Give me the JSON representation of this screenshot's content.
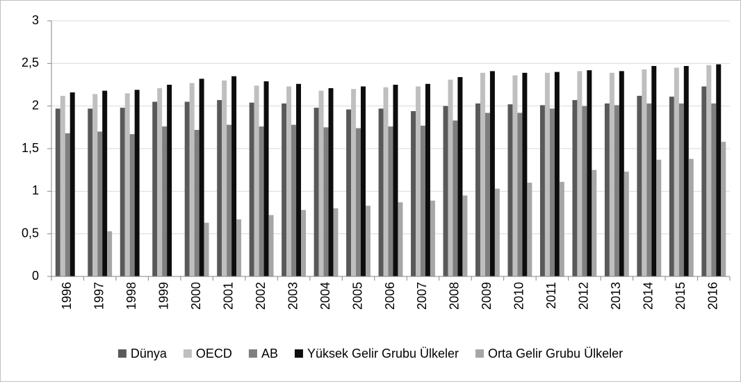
{
  "chart_data": {
    "type": "bar",
    "categories": [
      "1996",
      "1997",
      "1998",
      "1999",
      "2000",
      "2001",
      "2002",
      "2003",
      "2004",
      "2005",
      "2006",
      "2007",
      "2008",
      "2009",
      "2010",
      "2011",
      "2012",
      "2013",
      "2014",
      "2015",
      "2016"
    ],
    "series": [
      {
        "name": "Dünya",
        "color": "#595959",
        "values": [
          1.97,
          1.97,
          1.98,
          2.05,
          2.05,
          2.07,
          2.04,
          2.03,
          1.98,
          1.96,
          1.97,
          1.94,
          2.0,
          2.03,
          2.02,
          2.01,
          2.07,
          2.03,
          2.12,
          2.11,
          2.23
        ]
      },
      {
        "name": "OECD",
        "color": "#bfbfbf",
        "values": [
          2.12,
          2.14,
          2.15,
          2.21,
          2.27,
          2.3,
          2.24,
          2.23,
          2.18,
          2.2,
          2.22,
          2.23,
          2.31,
          2.39,
          2.36,
          2.39,
          2.41,
          2.39,
          2.43,
          2.45,
          2.48
        ]
      },
      {
        "name": "AB",
        "color": "#7f7f7f",
        "values": [
          1.68,
          1.7,
          1.67,
          1.76,
          1.72,
          1.78,
          1.76,
          1.78,
          1.75,
          1.74,
          1.76,
          1.77,
          1.83,
          1.92,
          1.92,
          1.97,
          2.0,
          2.01,
          2.03,
          2.03,
          2.03
        ]
      },
      {
        "name": "Yüksek Gelir Grubu Ülkeler",
        "color": "#0d0d0d",
        "values": [
          2.16,
          2.18,
          2.19,
          2.25,
          2.32,
          2.35,
          2.29,
          2.26,
          2.21,
          2.23,
          2.25,
          2.26,
          2.34,
          2.41,
          2.39,
          2.4,
          2.42,
          2.41,
          2.47,
          2.47,
          2.49
        ]
      },
      {
        "name": "Orta Gelir Grubu Ülkeler",
        "color": "#a6a6a6",
        "values": [
          null,
          0.53,
          null,
          null,
          0.63,
          0.67,
          0.72,
          0.78,
          0.8,
          0.83,
          0.87,
          0.89,
          0.95,
          1.03,
          1.1,
          1.11,
          1.25,
          1.23,
          1.37,
          1.38,
          1.58
        ]
      }
    ],
    "ylim": [
      0,
      3
    ],
    "yticks": [
      0,
      {
        "value": 0.5,
        "label": "0,5"
      },
      1,
      {
        "value": 1.5,
        "label": "1,5"
      },
      2,
      {
        "value": 2.5,
        "label": "2,5"
      },
      3
    ],
    "grid": true,
    "legend": "bottom"
  }
}
